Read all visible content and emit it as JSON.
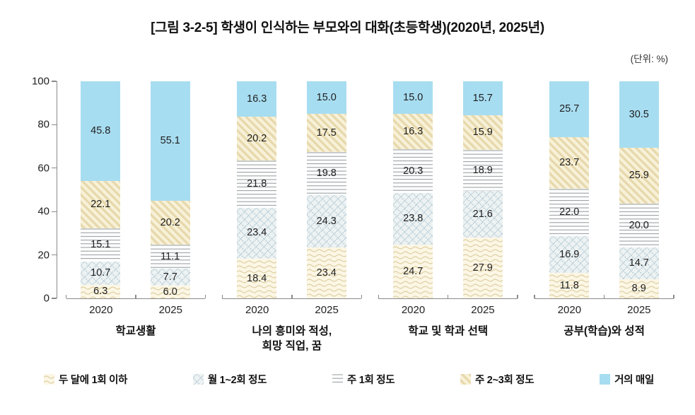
{
  "title": "[그림 3-2-5] 학생이 인식하는 부모와의 대화(초등학생)(2020년, 2025년)",
  "unit_label": "(단위:  %)",
  "chart_data": {
    "type": "bar",
    "stacked": true,
    "orientation": "vertical",
    "ylim": [
      0,
      100
    ],
    "yticks": [
      "0",
      "20",
      "40",
      "60",
      "80",
      "100"
    ],
    "grid": false,
    "legend_position": "bottom",
    "series_bottom_to_top": [
      "두 달에 1회 이하",
      "월 1~2회 정도",
      "주 1회 정도",
      "주 2~3회 정도",
      "거의 매일"
    ],
    "patterns_bottom_to_top": [
      "wave",
      "dots",
      "hlines",
      "diag",
      "solid"
    ],
    "bar_years": [
      "2020",
      "2025"
    ],
    "groups": [
      {
        "label": "학교생활",
        "bars": [
          {
            "year": "2020",
            "values": [
              "6.3",
              "10.7",
              "15.1",
              "22.1",
              "45.8"
            ]
          },
          {
            "year": "2025",
            "values": [
              "6.0",
              "7.7",
              "11.1",
              "20.2",
              "55.1"
            ]
          }
        ]
      },
      {
        "label": "나의 흥미와 적성,\n희망 직업, 꿈",
        "bars": [
          {
            "year": "2020",
            "values": [
              "18.4",
              "23.4",
              "21.8",
              "20.2",
              "16.3"
            ]
          },
          {
            "year": "2025",
            "values": [
              "23.4",
              "24.3",
              "19.8",
              "17.5",
              "15.0"
            ]
          }
        ]
      },
      {
        "label": "학교 및 학과 선택",
        "bars": [
          {
            "year": "2020",
            "values": [
              "24.7",
              "23.8",
              "20.3",
              "16.3",
              "15.0"
            ]
          },
          {
            "year": "2025",
            "values": [
              "27.9",
              "21.6",
              "18.9",
              "15.9",
              "15.7"
            ]
          }
        ]
      },
      {
        "label": "공부(학습)와 성적",
        "bars": [
          {
            "year": "2020",
            "values": [
              "11.8",
              "16.9",
              "22.0",
              "23.7",
              "25.7"
            ]
          },
          {
            "year": "2025",
            "values": [
              "8.9",
              "14.7",
              "20.0",
              "25.9",
              "30.5"
            ]
          }
        ]
      }
    ],
    "legend": [
      {
        "label": "두 달에 1회 이하",
        "pattern": "wave"
      },
      {
        "label": "월 1~2회 정도",
        "pattern": "dots"
      },
      {
        "label": "주 1회 정도",
        "pattern": "hlines"
      },
      {
        "label": "주 2~3회 정도",
        "pattern": "diag"
      },
      {
        "label": "거의 매일",
        "pattern": "solid"
      }
    ],
    "colors": {
      "solid_fill": "#a7ddf1",
      "wave_bg": "#fcf6e5",
      "wave_line": "#e0d3a8",
      "dots_bg": "#edf2f3",
      "dots_line": "#a8c2cc",
      "hlines_bg": "#ffffff",
      "hlines_line": "#9aa0a3",
      "diag_bg": "#f8f1d8",
      "diag_line": "#e6d8ab",
      "axis": "#8a8a8a",
      "text": "#1f1f1f"
    }
  }
}
